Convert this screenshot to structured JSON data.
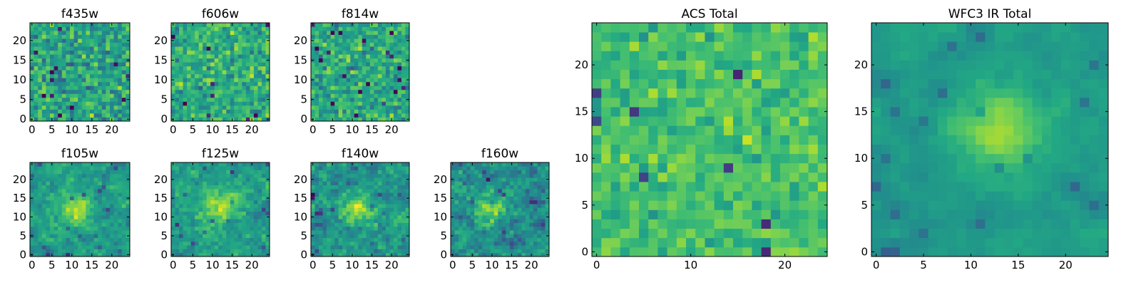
{
  "colormap": "viridis",
  "frame_color": "#000000",
  "chart_data": [
    {
      "type": "heatmap",
      "title": "f435w",
      "nx": 25,
      "ny": 25,
      "xlim": [
        0,
        25
      ],
      "ylim": [
        0,
        25
      ],
      "xticks": [
        0,
        5,
        10,
        15,
        20
      ],
      "yticks": [
        0,
        5,
        10,
        15,
        20
      ],
      "value_range": [
        0,
        1
      ],
      "bright_center": null,
      "mean_level": 0.58,
      "noise": 0.22,
      "smoothness": 0
    },
    {
      "type": "heatmap",
      "title": "f606w",
      "nx": 25,
      "ny": 25,
      "xlim": [
        0,
        25
      ],
      "ylim": [
        0,
        25
      ],
      "xticks": [
        0,
        5,
        10,
        15,
        20
      ],
      "yticks": [
        0,
        5,
        10,
        15,
        20
      ],
      "value_range": [
        0,
        1
      ],
      "bright_center": null,
      "mean_level": 0.62,
      "noise": 0.2,
      "smoothness": 0
    },
    {
      "type": "heatmap",
      "title": "f814w",
      "nx": 25,
      "ny": 25,
      "xlim": [
        0,
        25
      ],
      "ylim": [
        0,
        25
      ],
      "xticks": [
        0,
        5,
        10,
        15,
        20
      ],
      "yticks": [
        0,
        5,
        10,
        15,
        20
      ],
      "value_range": [
        0,
        1
      ],
      "bright_center": null,
      "mean_level": 0.6,
      "noise": 0.2,
      "smoothness": 0
    },
    {
      "type": "heatmap",
      "title": "f105w",
      "nx": 25,
      "ny": 25,
      "xlim": [
        0,
        25
      ],
      "ylim": [
        0,
        25
      ],
      "xticks": [
        0,
        5,
        10,
        15,
        20
      ],
      "yticks": [
        0,
        5,
        10,
        15,
        20
      ],
      "value_range": [
        0,
        1
      ],
      "bright_center": [
        11,
        12
      ],
      "mean_level": 0.55,
      "noise": 0.2,
      "smoothness": 1
    },
    {
      "type": "heatmap",
      "title": "f125w",
      "nx": 25,
      "ny": 25,
      "xlim": [
        0,
        25
      ],
      "ylim": [
        0,
        25
      ],
      "xticks": [
        0,
        5,
        10,
        15,
        20
      ],
      "yticks": [
        0,
        5,
        10,
        15,
        20
      ],
      "value_range": [
        0,
        1
      ],
      "bright_center": [
        12,
        13
      ],
      "mean_level": 0.55,
      "noise": 0.22,
      "smoothness": 1
    },
    {
      "type": "heatmap",
      "title": "f140w",
      "nx": 25,
      "ny": 25,
      "xlim": [
        0,
        25
      ],
      "ylim": [
        0,
        25
      ],
      "xticks": [
        0,
        5,
        10,
        15,
        20
      ],
      "yticks": [
        0,
        5,
        10,
        15,
        20
      ],
      "value_range": [
        0,
        1
      ],
      "bright_center": [
        12,
        12
      ],
      "mean_level": 0.52,
      "noise": 0.24,
      "smoothness": 1
    },
    {
      "type": "heatmap",
      "title": "f160w",
      "nx": 25,
      "ny": 25,
      "xlim": [
        0,
        25
      ],
      "ylim": [
        0,
        25
      ],
      "xticks": [
        0,
        5,
        10,
        15,
        20
      ],
      "yticks": [
        0,
        5,
        10,
        15,
        20
      ],
      "value_range": [
        0,
        1
      ],
      "bright_center": [
        10,
        12
      ],
      "mean_level": 0.48,
      "noise": 0.26,
      "smoothness": 1
    },
    {
      "type": "heatmap",
      "title": "ACS Total",
      "nx": 25,
      "ny": 25,
      "xlim": [
        0,
        25
      ],
      "ylim": [
        0,
        25
      ],
      "xticks": [
        0,
        10,
        20
      ],
      "yticks": [
        0,
        5,
        10,
        15,
        20
      ],
      "value_range": [
        0,
        1
      ],
      "bright_center": null,
      "mean_level": 0.7,
      "noise": 0.14,
      "smoothness": 0
    },
    {
      "type": "heatmap",
      "title": "WFC3 IR Total",
      "nx": 25,
      "ny": 25,
      "xlim": [
        0,
        25
      ],
      "ylim": [
        0,
        25
      ],
      "xticks": [
        0,
        5,
        10,
        15,
        20
      ],
      "yticks": [
        0,
        5,
        10,
        15,
        20
      ],
      "value_range": [
        0,
        1
      ],
      "bright_center": [
        13,
        13
      ],
      "mean_level": 0.55,
      "noise": 0.12,
      "smoothness": 2
    }
  ]
}
